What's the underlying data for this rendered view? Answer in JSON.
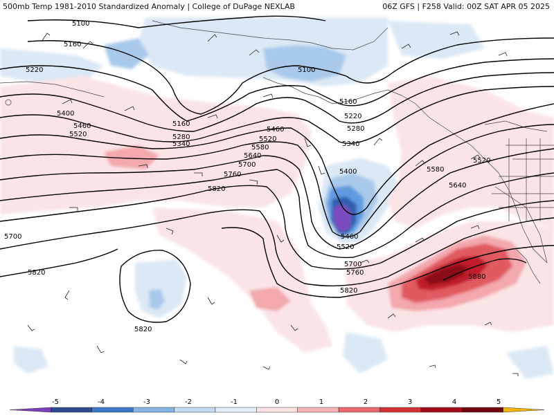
{
  "header": {
    "title_left": "500mb Temp 1981-2010 Standardized Anomaly | College of DuPage NEXLAB",
    "title_right": "06Z GFS | F258 Valid: 00Z SAT APR 05 2025"
  },
  "colorbar": {
    "ticks": [
      "-5",
      "-4",
      "-3",
      "-2",
      "-1",
      "0",
      "1",
      "2",
      "3",
      "4",
      "5"
    ],
    "colors": [
      "#7b3fb8",
      "#2e4a8c",
      "#3a78c8",
      "#86b4e2",
      "#c5dcf2",
      "#e3eef9",
      "#fbe2e4",
      "#f5b3b6",
      "#e8686e",
      "#d32f35",
      "#a30d1a",
      "#6e0710",
      "#f2b705"
    ]
  },
  "map": {
    "anomaly_colors": {
      "cold_1": "#dbe8f5",
      "cold_2": "#a9c9ea",
      "cold_3": "#5e9be0",
      "cold_4": "#2f5fae",
      "cold_5": "#7c4cbf",
      "warm_1": "#fbe4e6",
      "warm_2": "#f2a8ad",
      "warm_3": "#e05a61",
      "warm_4": "#c01e2a",
      "warm_5": "#8a0d18"
    },
    "height_labels": [
      "5100",
      "5160",
      "5220",
      "5400",
      "5460",
      "5520",
      "5160",
      "5280",
      "5340",
      "5460",
      "5520",
      "5580",
      "5640",
      "5700",
      "5760",
      "5820",
      "5100",
      "5160",
      "5220",
      "5280",
      "5340",
      "5400",
      "5460",
      "5520",
      "5580",
      "5640",
      "5520",
      "5700",
      "5820",
      "5820",
      "5700",
      "5760",
      "5820",
      "5880"
    ]
  }
}
